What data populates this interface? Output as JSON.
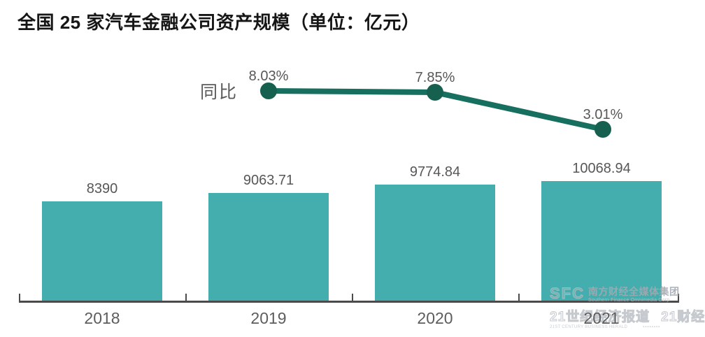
{
  "title": "全国 25 家汽车金融公司资产规模（单位：亿元）",
  "chart_data": {
    "type": "combo",
    "title": "全国 25 家汽车金融公司资产规模（单位：亿元）",
    "unit": "亿元",
    "categories": [
      "2018",
      "2019",
      "2020",
      "2021"
    ],
    "grid": false,
    "y_axis_visible": false,
    "series": [
      {
        "name": "资产规模",
        "type": "bar",
        "values": [
          8390,
          9063.71,
          9774.84,
          10068.94
        ],
        "data_labels": [
          "8390",
          "9063.71",
          "9774.84",
          "10068.94"
        ],
        "color": "#43aead"
      },
      {
        "name": "同比",
        "type": "line",
        "categories": [
          "2019",
          "2020",
          "2021"
        ],
        "values": [
          8.03,
          7.85,
          3.01
        ],
        "data_labels": [
          "8.03%",
          "7.85%",
          "3.01%"
        ],
        "color": "#17705f",
        "marker_color": "#16604f",
        "label_position": "left-of-first-point"
      }
    ]
  },
  "line_series_label": "同比",
  "colors": {
    "bar": "#43aead",
    "line": "#17705f",
    "marker": "#16604f",
    "axis": "#4b4b4b",
    "text_gray": "#575757",
    "title_text": "#161616"
  },
  "watermark": {
    "logo_text": "SFC",
    "org_cn": "南方财经全媒体集团",
    "org_en": "Southern Finance Omnimedia Corp",
    "brand1": "21世纪经济报道",
    "brand2": "21财经",
    "brand1_sub": "21ST CENTURY BUSINESS HERALD",
    "brand2_sub": "▪▪▪▪▪▪▪▪"
  }
}
